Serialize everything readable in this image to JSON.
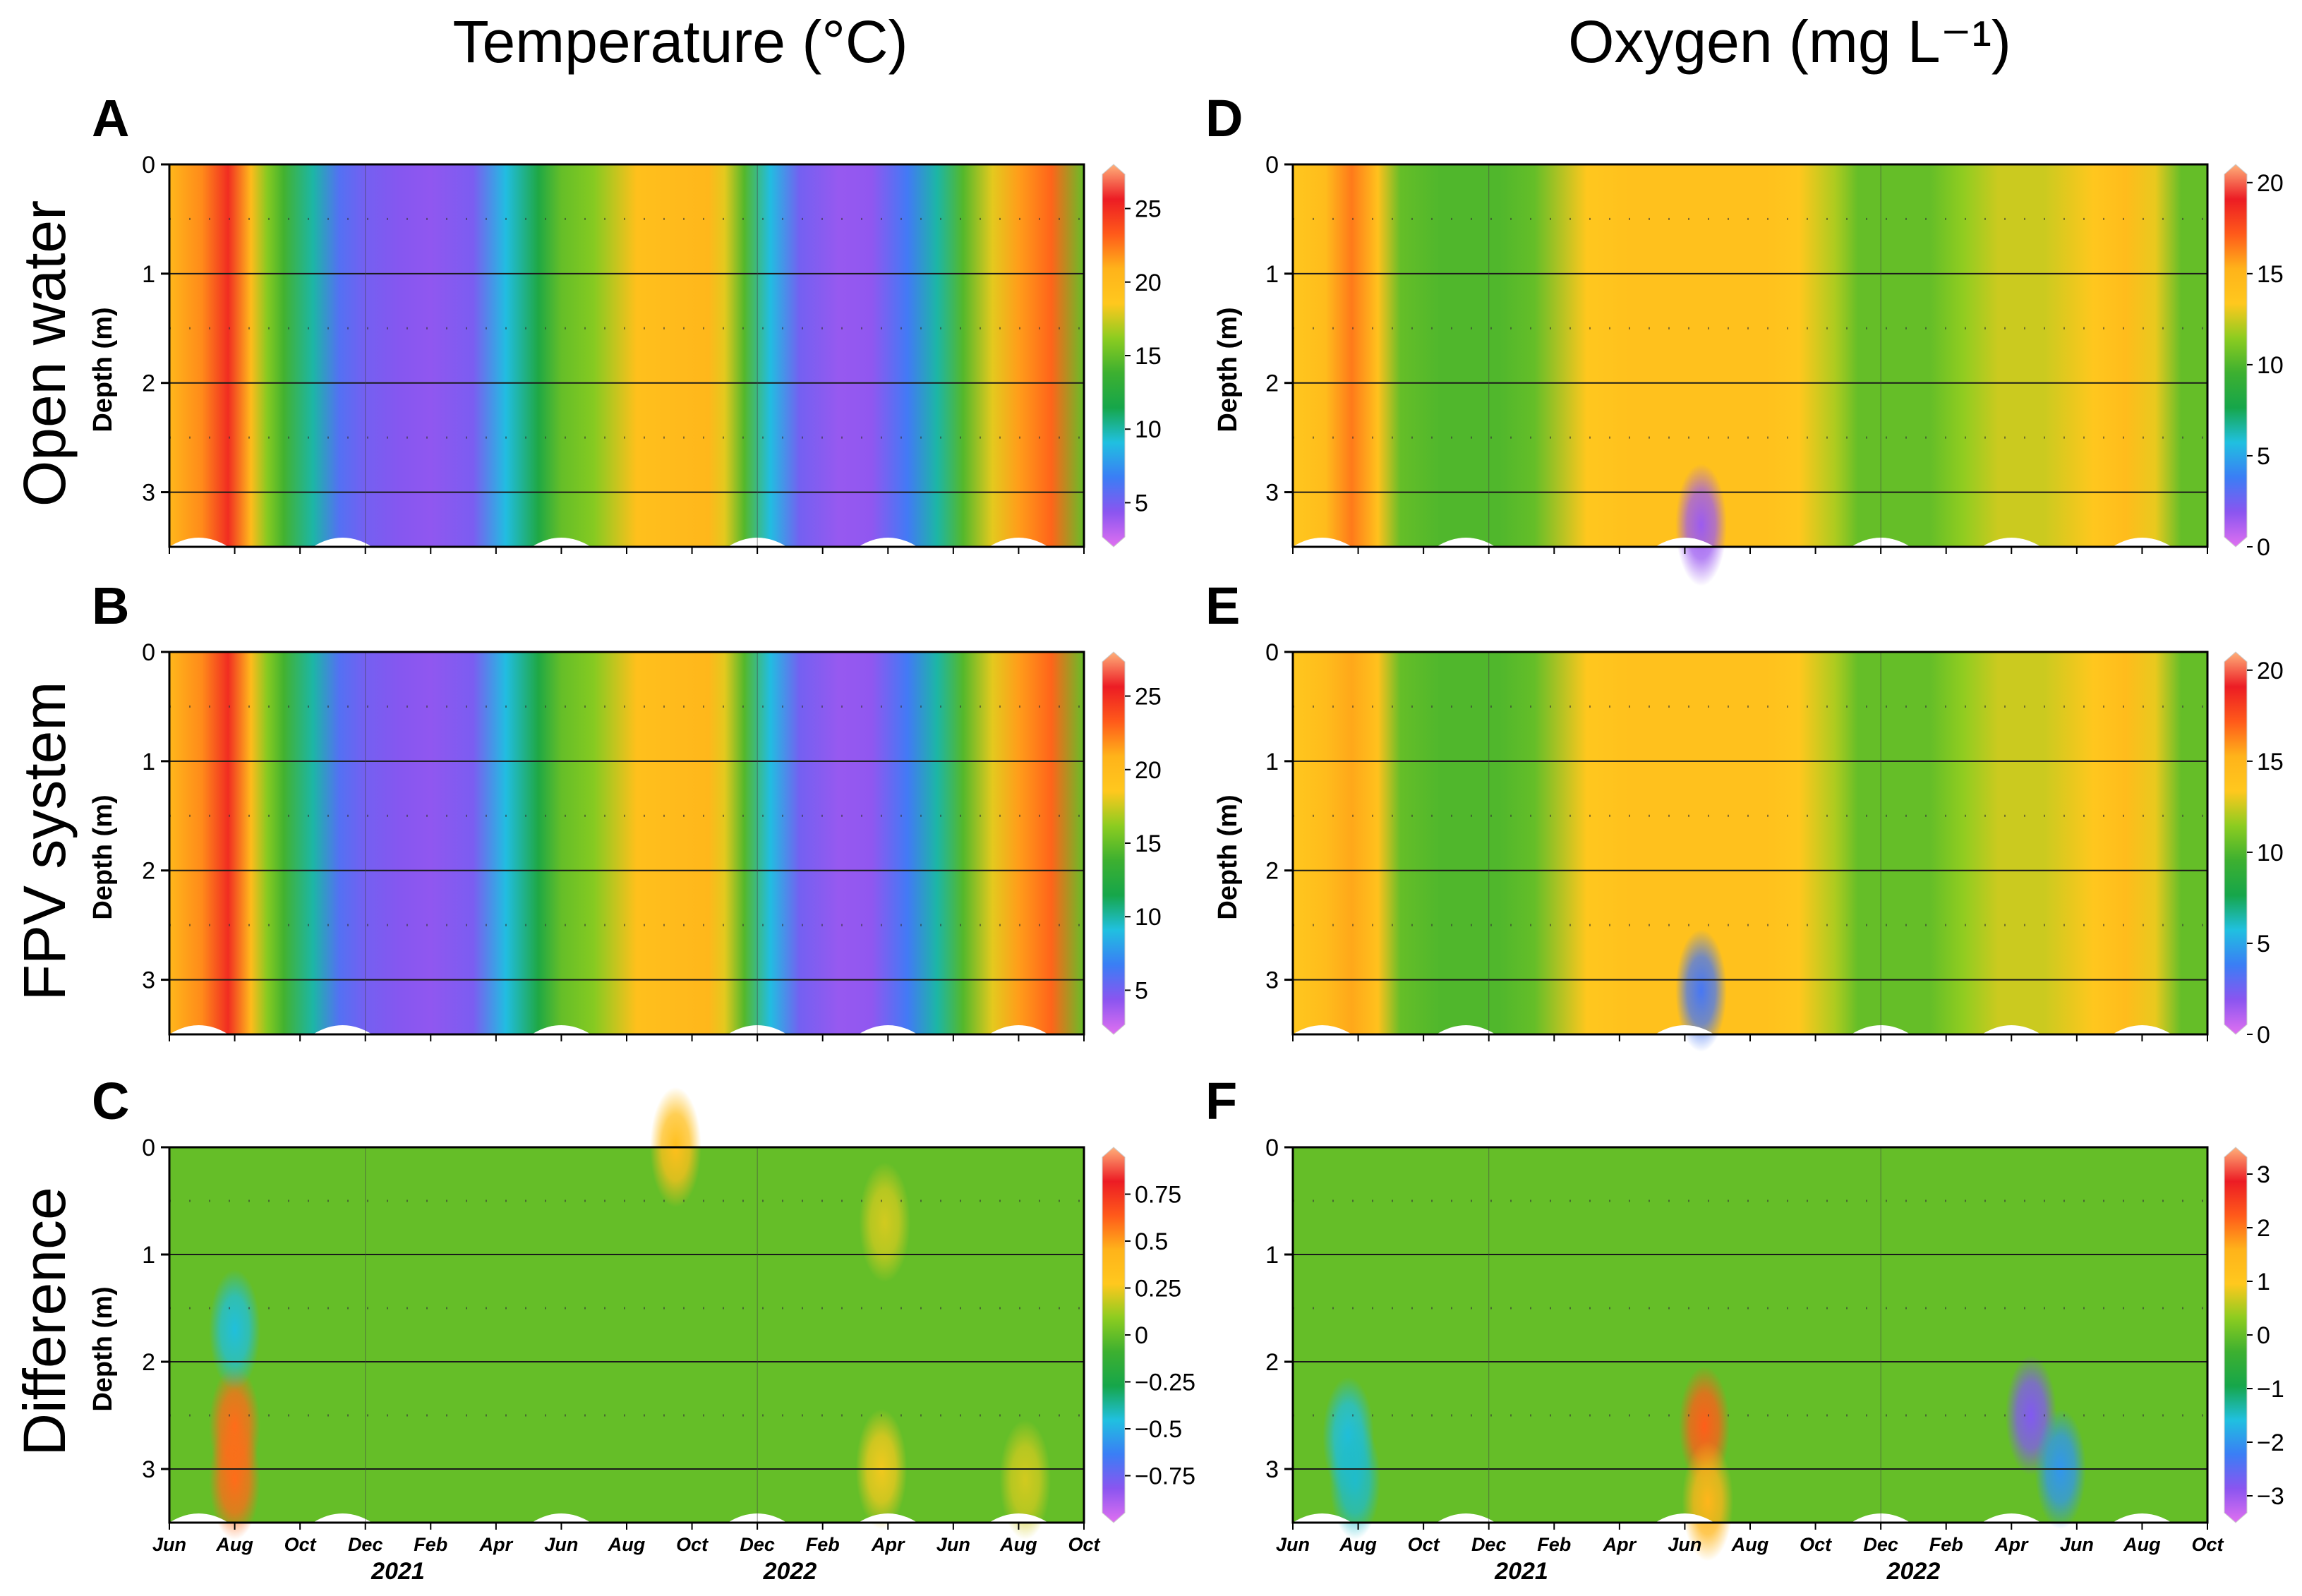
{
  "column_titles": {
    "temperature": "Temperature (°C)",
    "oxygen": "Oxygen (mg L⁻¹)"
  },
  "row_titles": [
    "Open water",
    "FPV system",
    "Difference"
  ],
  "colors": {
    "palette": [
      "#e070f0",
      "#8a55f0",
      "#3a7ef5",
      "#20c0e0",
      "#16a64a",
      "#3db030",
      "#8ccc20",
      "#ffc81e",
      "#ffb31a",
      "#ff5a1a",
      "#ec1c24",
      "#ffb07a"
    ],
    "missing": "#ffffff",
    "sample_marker": "#333333"
  },
  "chart_data": [
    {
      "panel": "A",
      "type": "heatmap",
      "variable": "Temperature (°C)",
      "site": "Open water",
      "ylabel": "Depth (m)",
      "yticks": [
        "0",
        "1",
        "2",
        "3"
      ],
      "ylim": [
        0,
        3.5
      ],
      "xticks": [
        "Jun",
        "Aug",
        "Oct",
        "Dec",
        "Feb",
        "Apr",
        "Jun",
        "Aug",
        "Oct",
        "Dec",
        "Feb",
        "Apr",
        "Jun",
        "Aug",
        "Oct"
      ],
      "year_labels": [
        "2021",
        "2022"
      ],
      "x_range_months": [
        0,
        28
      ],
      "clim": [
        2,
        28
      ],
      "colorbar_ticks": [
        "25",
        "20",
        "15",
        "10",
        "5"
      ],
      "time_months": [
        0,
        1,
        1.8,
        2.5,
        3,
        3.5,
        4.4,
        5.2,
        6,
        7,
        8,
        9.3,
        10.3,
        11.3,
        12,
        13,
        14.3,
        15.4,
        16.5,
        17,
        17.6,
        18.4,
        19.3,
        20.5,
        21.5,
        22.6,
        23.5,
        24.3,
        25.2,
        26,
        27,
        28
      ],
      "mean_values": [
        20.5,
        22,
        25,
        20,
        16,
        14,
        10,
        6,
        5,
        4.5,
        4.2,
        4.8,
        9,
        12,
        15,
        16,
        19.5,
        20,
        20.5,
        18,
        14.5,
        9,
        5,
        4,
        4.2,
        6.5,
        10,
        14.5,
        18,
        21.5,
        23,
        15
      ]
    },
    {
      "panel": "B",
      "type": "heatmap",
      "variable": "Temperature (°C)",
      "site": "FPV system",
      "ylabel": "Depth (m)",
      "yticks": [
        "0",
        "1",
        "2",
        "3"
      ],
      "ylim": [
        0,
        3.5
      ],
      "xticks": [
        "Jun",
        "Aug",
        "Oct",
        "Dec",
        "Feb",
        "Apr",
        "Jun",
        "Aug",
        "Oct",
        "Dec",
        "Feb",
        "Apr",
        "Jun",
        "Aug",
        "Oct"
      ],
      "year_labels": [
        "2021",
        "2022"
      ],
      "x_range_months": [
        0,
        28
      ],
      "clim": [
        2,
        28
      ],
      "colorbar_ticks": [
        "25",
        "20",
        "15",
        "10",
        "5"
      ],
      "time_months": [
        0,
        1,
        1.8,
        2.5,
        3,
        3.5,
        4.4,
        5.2,
        6,
        7,
        8,
        9.3,
        10.3,
        11.3,
        12,
        13,
        14.3,
        15.4,
        16.5,
        17,
        17.6,
        18.4,
        19.3,
        20.5,
        21.5,
        22.6,
        23.5,
        24.3,
        25.2,
        26,
        27,
        28
      ],
      "mean_values": [
        20.5,
        22,
        25,
        20,
        16,
        14,
        10,
        6,
        5,
        4.5,
        4.2,
        4.8,
        9,
        12,
        15,
        16,
        19.5,
        20,
        20.5,
        18,
        14.5,
        9,
        5,
        4,
        4.2,
        6.5,
        10,
        14.5,
        18,
        21.5,
        23,
        15
      ]
    },
    {
      "panel": "C",
      "type": "heatmap",
      "variable": "Temperature difference (°C)",
      "site": "Difference",
      "ylabel": "Depth (m)",
      "yticks": [
        "0",
        "1",
        "2",
        "3"
      ],
      "ylim": [
        0,
        3.5
      ],
      "xticks": [
        "Jun",
        "Aug",
        "Oct",
        "Dec",
        "Feb",
        "Apr",
        "Jun",
        "Aug",
        "Oct",
        "Dec",
        "Feb",
        "Apr",
        "Jun",
        "Aug",
        "Oct"
      ],
      "year_labels": [
        "2021",
        "2022"
      ],
      "x_range_months": [
        0,
        28
      ],
      "clim": [
        -1,
        1
      ],
      "colorbar_ticks": [
        "0.75",
        "0.5",
        "0.25",
        "0",
        "−0.25",
        "−0.5",
        "−0.75"
      ],
      "time_months": [
        0,
        28
      ],
      "mean_values": [
        0,
        0
      ],
      "hotspots": [
        {
          "t": 2,
          "depth": 2.6,
          "value": 0.6
        },
        {
          "t": 2,
          "depth": 3.1,
          "value": 0.6
        },
        {
          "t": 2,
          "depth": 1.7,
          "value": -0.45
        },
        {
          "t": 15.5,
          "depth": 0,
          "value": 0.35
        },
        {
          "t": 21.9,
          "depth": 0.7,
          "value": 0.2
        },
        {
          "t": 21.8,
          "depth": 3,
          "value": 0.25
        },
        {
          "t": 26.2,
          "depth": 3.1,
          "value": 0.2
        }
      ]
    },
    {
      "panel": "D",
      "type": "heatmap",
      "variable": "Oxygen (mg L⁻¹)",
      "site": "Open water",
      "ylabel": "Depth (m)",
      "yticks": [
        "0",
        "1",
        "2",
        "3"
      ],
      "ylim": [
        0,
        3.5
      ],
      "xticks": [
        "Jun",
        "Aug",
        "Oct",
        "Dec",
        "Feb",
        "Apr",
        "Jun",
        "Aug",
        "Oct",
        "Dec",
        "Feb",
        "Apr",
        "Jun",
        "Aug",
        "Oct"
      ],
      "year_labels": [
        "2021",
        "2022"
      ],
      "x_range_months": [
        0,
        28
      ],
      "clim": [
        0,
        21
      ],
      "colorbar_ticks": [
        "20",
        "15",
        "10",
        "5",
        "0"
      ],
      "time_months": [
        0,
        1,
        1.8,
        2.6,
        3.3,
        4.5,
        6.3,
        7.4,
        9,
        10.3,
        11.5,
        13,
        14.5,
        15.5,
        16.6,
        17.3,
        18.5,
        19.5,
        20.5,
        21.6,
        23,
        24.5,
        25.5,
        26.4,
        27.2,
        28
      ],
      "mean_values": [
        13.5,
        14.5,
        16.5,
        14,
        10.5,
        10,
        10,
        10.5,
        13.5,
        14,
        14,
        14,
        14,
        13.5,
        12,
        10.5,
        10.5,
        10.5,
        11.5,
        12.5,
        12.5,
        13.5,
        14.5,
        13,
        10.5,
        10.5
      ],
      "hotspots": [
        {
          "t": 12.5,
          "depth": 3.3,
          "value": 1.5
        }
      ]
    },
    {
      "panel": "E",
      "type": "heatmap",
      "variable": "Oxygen (mg L⁻¹)",
      "site": "FPV system",
      "ylabel": "Depth (m)",
      "yticks": [
        "0",
        "1",
        "2",
        "3"
      ],
      "ylim": [
        0,
        3.5
      ],
      "xticks": [
        "Jun",
        "Aug",
        "Oct",
        "Dec",
        "Feb",
        "Apr",
        "Jun",
        "Aug",
        "Oct",
        "Dec",
        "Feb",
        "Apr",
        "Jun",
        "Aug",
        "Oct"
      ],
      "year_labels": [
        "2021",
        "2022"
      ],
      "x_range_months": [
        0,
        28
      ],
      "clim": [
        0,
        21
      ],
      "colorbar_ticks": [
        "20",
        "15",
        "10",
        "5",
        "0"
      ],
      "time_months": [
        0,
        1,
        1.8,
        2.6,
        3.3,
        4.5,
        6.3,
        7.4,
        9,
        10.3,
        11.5,
        13,
        14.5,
        15.5,
        16.6,
        17.3,
        18.5,
        19.5,
        20.5,
        21.6,
        23,
        24.5,
        25.5,
        26.4,
        27.2,
        28
      ],
      "mean_values": [
        13.5,
        14.5,
        15.5,
        14,
        10.5,
        10,
        10,
        10.5,
        13.5,
        14,
        14,
        14,
        14,
        13.5,
        12,
        10.5,
        10.5,
        10.5,
        11.5,
        12.5,
        12.5,
        13.5,
        14.5,
        13,
        10.5,
        10.5
      ],
      "hotspots": [
        {
          "t": 12.5,
          "depth": 3.1,
          "value": 3.5
        }
      ]
    },
    {
      "panel": "F",
      "type": "heatmap",
      "variable": "Oxygen difference (mg L⁻¹)",
      "site": "Difference",
      "ylabel": "",
      "yticks": [
        "0",
        "1",
        "2",
        "3"
      ],
      "ylim": [
        0,
        3.5
      ],
      "xticks": [
        "Jun",
        "Aug",
        "Oct",
        "Dec",
        "Feb",
        "Apr",
        "Jun",
        "Aug",
        "Oct",
        "Dec",
        "Feb",
        "Apr",
        "Jun",
        "Aug",
        "Oct"
      ],
      "year_labels": [
        "2021",
        "2022"
      ],
      "x_range_months": [
        0,
        28
      ],
      "clim": [
        -3.5,
        3.5
      ],
      "colorbar_ticks": [
        "3",
        "2",
        "1",
        "0",
        "−1",
        "−2",
        "−3"
      ],
      "time_months": [
        0,
        28
      ],
      "mean_values": [
        0,
        0
      ],
      "hotspots": [
        {
          "t": 1.7,
          "depth": 2.7,
          "value": -1.6
        },
        {
          "t": 1.9,
          "depth": 3.1,
          "value": -1.5
        },
        {
          "t": 12.6,
          "depth": 2.6,
          "value": 2.2
        },
        {
          "t": 12.7,
          "depth": 3.3,
          "value": 1.5
        },
        {
          "t": 22.6,
          "depth": 2.5,
          "value": -2.8
        },
        {
          "t": 23.5,
          "depth": 3.0,
          "value": -2
        }
      ]
    }
  ]
}
